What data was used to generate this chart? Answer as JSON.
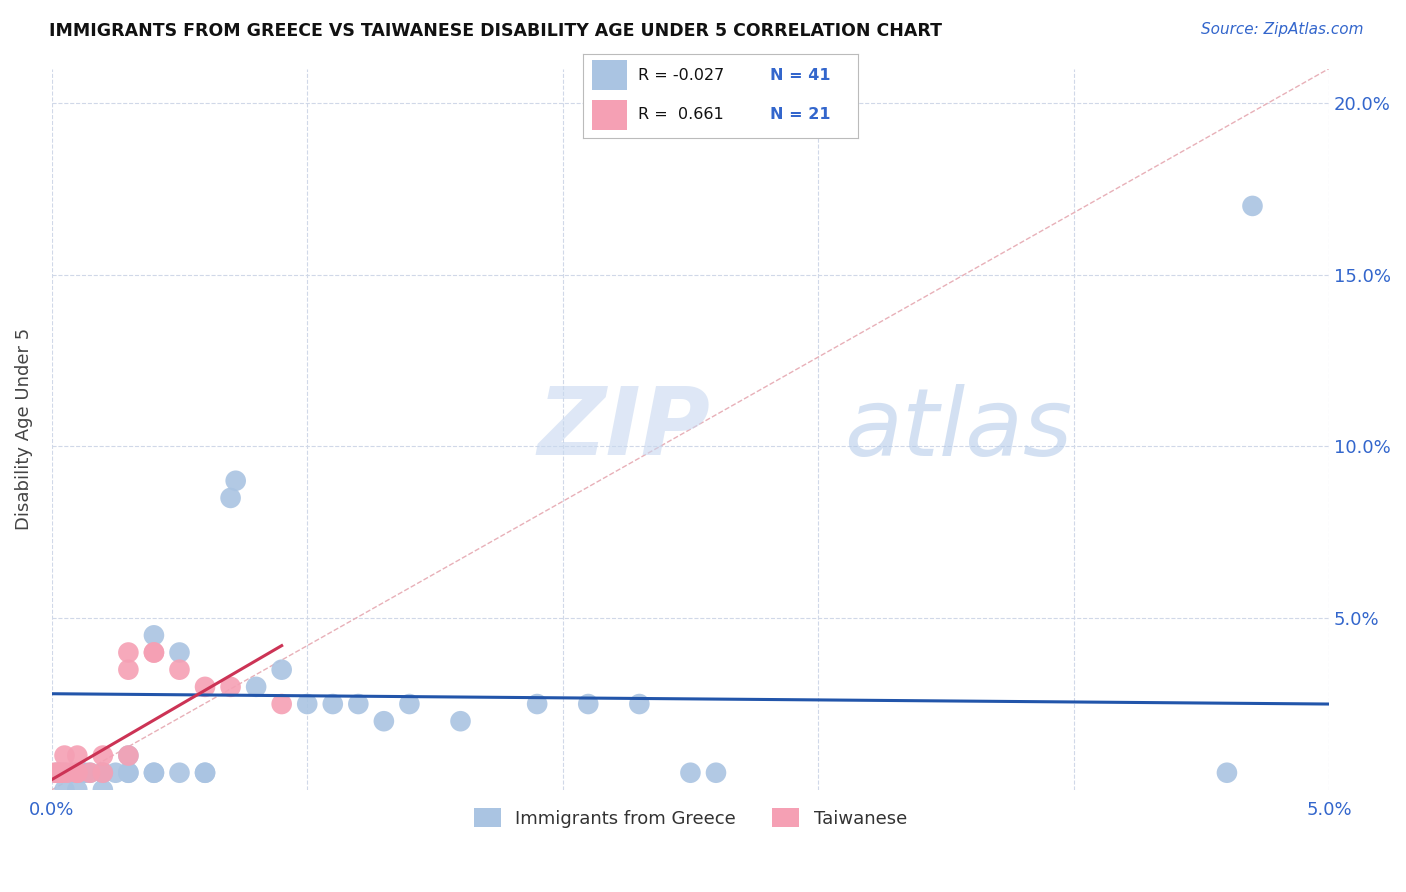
{
  "title": "IMMIGRANTS FROM GREECE VS TAIWANESE DISABILITY AGE UNDER 5 CORRELATION CHART",
  "source": "Source: ZipAtlas.com",
  "ylabel": "Disability Age Under 5",
  "legend_label1": "Immigrants from Greece",
  "legend_label2": "Taiwanese",
  "r1": "-0.027",
  "n1": "41",
  "r2": "0.661",
  "n2": "21",
  "blue_color": "#aac4e2",
  "pink_color": "#f5a0b4",
  "line_color_blue": "#2255aa",
  "line_color_pink": "#cc3355",
  "diag_color": "#e8b0b8",
  "xlim": [
    0.0,
    0.05
  ],
  "ylim": [
    0.0,
    0.21
  ],
  "yticks": [
    0.05,
    0.1,
    0.15,
    0.2
  ],
  "ytick_labels": [
    "5.0%",
    "10.0%",
    "15.0%",
    "20.0%"
  ],
  "xticks": [
    0.0,
    0.01,
    0.02,
    0.03,
    0.04,
    0.05
  ],
  "xtick_labels": [
    "0.0%",
    "",
    "",
    "",
    "",
    "5.0%"
  ],
  "blue_x": [
    0.0002,
    0.0003,
    0.0005,
    0.0005,
    0.0008,
    0.001,
    0.001,
    0.0012,
    0.0013,
    0.0015,
    0.002,
    0.002,
    0.002,
    0.0025,
    0.003,
    0.003,
    0.003,
    0.004,
    0.004,
    0.004,
    0.005,
    0.005,
    0.006,
    0.006,
    0.007,
    0.0072,
    0.008,
    0.009,
    0.01,
    0.011,
    0.012,
    0.013,
    0.014,
    0.016,
    0.019,
    0.021,
    0.023,
    0.025,
    0.026,
    0.046,
    0.047
  ],
  "blue_y": [
    0.005,
    0.005,
    0.005,
    0.0,
    0.005,
    0.005,
    0.0,
    0.005,
    0.005,
    0.005,
    0.005,
    0.005,
    0.0,
    0.005,
    0.005,
    0.01,
    0.005,
    0.005,
    0.045,
    0.005,
    0.04,
    0.005,
    0.005,
    0.005,
    0.085,
    0.09,
    0.03,
    0.035,
    0.025,
    0.025,
    0.025,
    0.02,
    0.025,
    0.02,
    0.025,
    0.025,
    0.025,
    0.005,
    0.005,
    0.005,
    0.17
  ],
  "pink_x": [
    0.0001,
    0.0002,
    0.0003,
    0.0004,
    0.0005,
    0.0006,
    0.001,
    0.001,
    0.001,
    0.0015,
    0.002,
    0.002,
    0.003,
    0.003,
    0.003,
    0.004,
    0.004,
    0.005,
    0.006,
    0.007,
    0.009
  ],
  "pink_y": [
    0.005,
    0.005,
    0.005,
    0.005,
    0.01,
    0.005,
    0.005,
    0.005,
    0.01,
    0.005,
    0.005,
    0.01,
    0.035,
    0.04,
    0.01,
    0.04,
    0.04,
    0.035,
    0.03,
    0.03,
    0.025
  ],
  "blue_trend_x": [
    0.0,
    0.05
  ],
  "blue_trend_y": [
    0.028,
    0.025
  ],
  "pink_trend_x": [
    0.0,
    0.009
  ],
  "pink_trend_y": [
    0.003,
    0.042
  ]
}
